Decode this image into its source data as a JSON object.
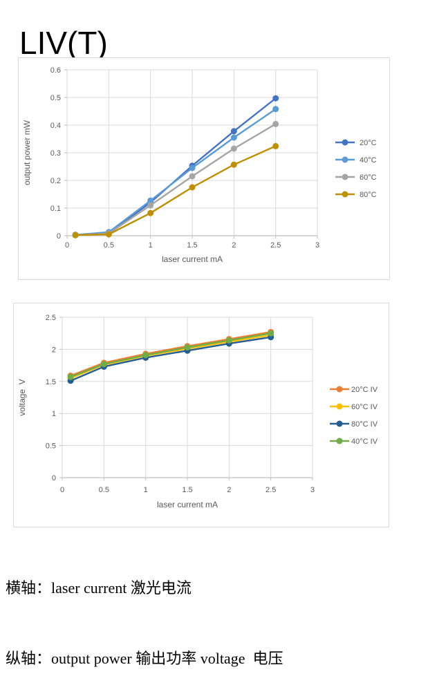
{
  "page": {
    "title": "LIV(T)",
    "footnotes": [
      "横轴：laser current 激光电流",
      "纵轴：output power 输出功率 voltage  电压"
    ]
  },
  "colors": {
    "grid": "#d9d9d9",
    "axis": "#bfbfbf",
    "text": "#595959",
    "border": "#d9d9d9"
  },
  "chart_data": [
    {
      "type": "line",
      "title": "",
      "xlabel": "laser current mA",
      "ylabel": "output power mW",
      "xlim": [
        0,
        3
      ],
      "ylim": [
        0,
        0.6
      ],
      "xticks": [
        0,
        0.5,
        1,
        1.5,
        2,
        2.5,
        3
      ],
      "yticks": [
        0,
        0.1,
        0.2,
        0.3,
        0.4,
        0.5,
        0.6
      ],
      "grid": true,
      "legend_position": "right",
      "x": [
        0.1,
        0.5,
        1,
        1.5,
        2,
        2.5
      ],
      "series": [
        {
          "name": "20°C",
          "color": "#4472C4",
          "values": [
            0.003,
            0.01,
            0.12,
            0.253,
            0.378,
            0.497
          ]
        },
        {
          "name": "40°C",
          "color": "#5B9BD5",
          "values": [
            0.003,
            0.013,
            0.127,
            0.245,
            0.355,
            0.458
          ]
        },
        {
          "name": "60°C",
          "color": "#A5A5A5",
          "values": [
            0.002,
            0.008,
            0.11,
            0.215,
            0.315,
            0.404
          ]
        },
        {
          "name": "80°C",
          "color": "#BF8F00",
          "values": [
            0.002,
            0.005,
            0.082,
            0.175,
            0.257,
            0.324
          ]
        }
      ]
    },
    {
      "type": "line",
      "title": "",
      "xlabel": "laser current mA",
      "ylabel": "voltage  V",
      "xlim": [
        0,
        3
      ],
      "ylim": [
        0,
        2.5
      ],
      "xticks": [
        0,
        0.5,
        1,
        1.5,
        2,
        2.5,
        3
      ],
      "yticks": [
        0,
        0.5,
        1,
        1.5,
        2,
        2.5
      ],
      "grid": true,
      "legend_position": "right",
      "x": [
        0.1,
        0.5,
        1,
        1.5,
        2,
        2.5
      ],
      "series": [
        {
          "name": "20°C IV",
          "color": "#ED7D31",
          "values": [
            1.59,
            1.79,
            1.93,
            2.05,
            2.16,
            2.27
          ]
        },
        {
          "name": "60°C IV",
          "color": "#FFC000",
          "values": [
            1.55,
            1.76,
            1.9,
            2.01,
            2.12,
            2.22
          ]
        },
        {
          "name": "80°C IV",
          "color": "#255E91",
          "values": [
            1.51,
            1.73,
            1.87,
            1.98,
            2.09,
            2.19
          ]
        },
        {
          "name": "40°C IV",
          "color": "#70AD47",
          "values": [
            1.57,
            1.77,
            1.91,
            2.03,
            2.14,
            2.25
          ]
        }
      ]
    }
  ]
}
